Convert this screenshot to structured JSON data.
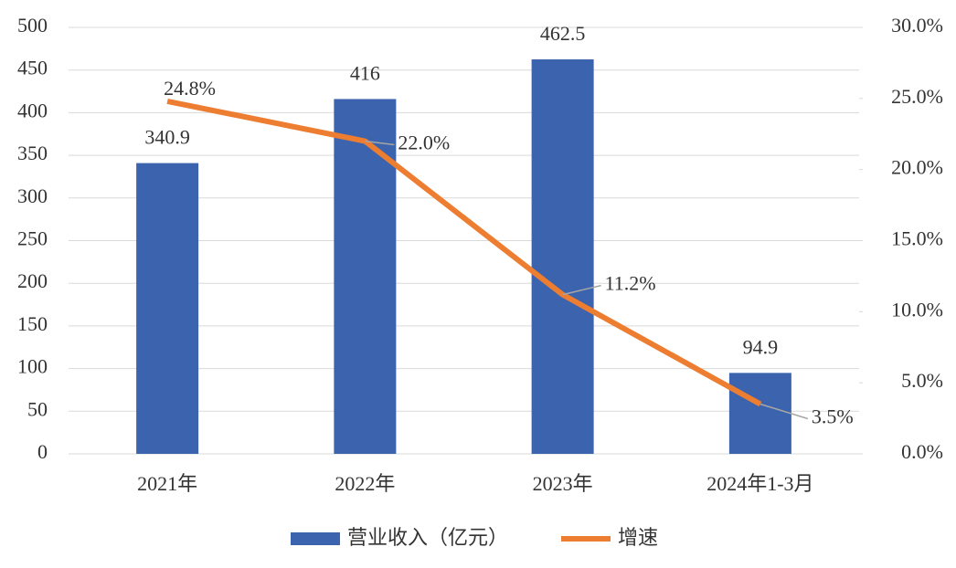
{
  "chart_data": {
    "type": "bar",
    "categories": [
      "2021年",
      "2022年",
      "2023年",
      "2024年1-3月"
    ],
    "series": [
      {
        "name": "营业收入（亿元）",
        "type": "bar",
        "color": "#3c63ad",
        "values": [
          340.9,
          416,
          462.5,
          94.9
        ]
      },
      {
        "name": "增速",
        "type": "line",
        "axis": "y2",
        "color": "#ed7d31",
        "values": [
          24.8,
          22.0,
          11.2,
          3.5
        ],
        "value_labels": [
          "24.8%",
          "22.0%",
          "11.2%",
          "3.5%"
        ]
      }
    ],
    "ylim": [
      0,
      500
    ],
    "yticks": [
      0,
      50,
      100,
      150,
      200,
      250,
      300,
      350,
      400,
      450,
      500
    ],
    "y2lim": [
      0,
      30
    ],
    "y2ticks": [
      {
        "value": 0,
        "label": "0.0%"
      },
      {
        "value": 5,
        "label": "5.0%"
      },
      {
        "value": 10,
        "label": "10.0%"
      },
      {
        "value": 15,
        "label": "15.0%"
      },
      {
        "value": 20,
        "label": "20.0%"
      },
      {
        "value": 25,
        "label": "25.0%"
      },
      {
        "value": 30,
        "label": "30.0%"
      }
    ],
    "grid": true,
    "legend": "bottom"
  }
}
